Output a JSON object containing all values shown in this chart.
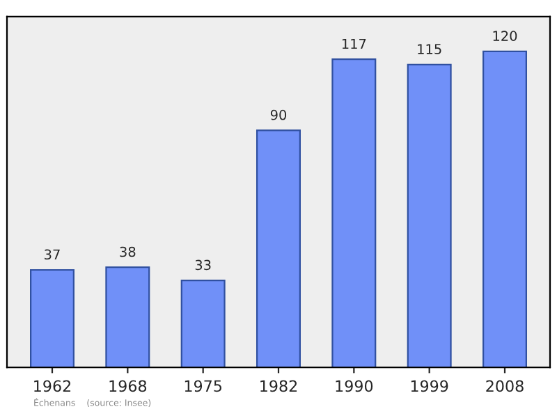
{
  "chart_data": {
    "type": "bar",
    "categories": [
      "1962",
      "1968",
      "1975",
      "1982",
      "1990",
      "1999",
      "2008"
    ],
    "values": [
      37,
      38,
      33,
      90,
      117,
      115,
      120
    ],
    "color": "#7090f8",
    "data_labels": true,
    "grid": false,
    "annotations": [
      "Échenans    (source: Insee)"
    ]
  }
}
